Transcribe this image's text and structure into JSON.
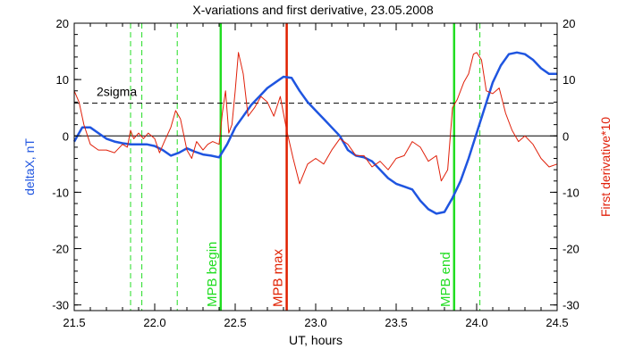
{
  "chart_data": {
    "type": "line",
    "title": "X-variations and first derivative, 23.05.2008",
    "xlabel": "UT, hours",
    "ylabel_left": "deltaX, nT",
    "ylabel_right": "First derivative*10",
    "xlim": [
      21.5,
      24.5
    ],
    "ylim": [
      -31,
      20
    ],
    "x_ticks": [
      "21.5",
      "22.0",
      "22.5",
      "23.0",
      "23.5",
      "24.0",
      "24.5"
    ],
    "y_ticks_left": [
      "20",
      "10",
      "0",
      "-10",
      "-20",
      "-30"
    ],
    "y_ticks_right": [
      "20",
      "10",
      "0",
      "-10",
      "-20",
      "-30"
    ],
    "grid": false,
    "colors": {
      "deltaX": "#1f55e0",
      "derivative": "#e0200a",
      "green": "#22dd22",
      "red_marker": "#e02000",
      "axis": "#000000"
    },
    "series": [
      {
        "name": "deltaX, nT",
        "x": [
          21.5,
          21.55,
          21.6,
          21.65,
          21.7,
          21.75,
          21.8,
          21.85,
          21.9,
          21.95,
          22.0,
          22.05,
          22.1,
          22.15,
          22.2,
          22.25,
          22.3,
          22.35,
          22.4,
          22.45,
          22.5,
          22.55,
          22.6,
          22.65,
          22.7,
          22.75,
          22.8,
          22.85,
          22.9,
          22.95,
          23.0,
          23.05,
          23.1,
          23.15,
          23.2,
          23.25,
          23.3,
          23.35,
          23.4,
          23.45,
          23.5,
          23.55,
          23.6,
          23.65,
          23.7,
          23.75,
          23.8,
          23.85,
          23.9,
          23.95,
          24.0,
          24.05,
          24.1,
          24.15,
          24.2,
          24.25,
          24.3,
          24.35,
          24.4,
          24.45,
          24.5
        ],
        "y": [
          -1.0,
          1.5,
          1.5,
          0.5,
          -0.5,
          -1.0,
          -1.3,
          -1.5,
          -1.5,
          -1.5,
          -1.8,
          -2.5,
          -3.5,
          -3.0,
          -2.2,
          -2.8,
          -3.3,
          -3.5,
          -3.8,
          -1.5,
          1.5,
          3.5,
          5.5,
          7.0,
          8.5,
          9.5,
          10.5,
          10.3,
          8.0,
          6.0,
          4.5,
          3.0,
          1.5,
          0.0,
          -2.5,
          -3.5,
          -3.8,
          -4.5,
          -6.0,
          -7.5,
          -8.5,
          -9.0,
          -9.5,
          -11.5,
          -13.0,
          -13.8,
          -13.5,
          -11.0,
          -8.0,
          -4.0,
          0.5,
          5.0,
          9.5,
          12.5,
          14.5,
          14.8,
          14.5,
          13.5,
          12.0,
          11.0,
          11.0
        ]
      },
      {
        "name": "First derivative*10",
        "x": [
          21.5,
          21.53,
          21.56,
          21.6,
          21.65,
          21.7,
          21.75,
          21.8,
          21.83,
          21.85,
          21.87,
          21.9,
          21.93,
          21.96,
          22.0,
          22.03,
          22.06,
          22.1,
          22.13,
          22.16,
          22.2,
          22.23,
          22.26,
          22.3,
          22.33,
          22.36,
          22.4,
          22.42,
          22.44,
          22.46,
          22.48,
          22.5,
          22.52,
          22.55,
          22.58,
          22.62,
          22.66,
          22.7,
          22.74,
          22.78,
          22.82,
          22.86,
          22.9,
          22.95,
          23.0,
          23.05,
          23.1,
          23.15,
          23.2,
          23.25,
          23.3,
          23.35,
          23.4,
          23.45,
          23.5,
          23.55,
          23.6,
          23.65,
          23.7,
          23.75,
          23.78,
          23.82,
          23.85,
          23.88,
          23.92,
          23.95,
          23.98,
          24.0,
          24.03,
          24.06,
          24.1,
          24.14,
          24.18,
          24.22,
          24.26,
          24.3,
          24.35,
          24.4,
          24.45,
          24.5
        ],
        "y": [
          8.0,
          6.0,
          2.0,
          -1.5,
          -2.5,
          -2.5,
          -3.0,
          -1.5,
          -2.0,
          1.0,
          -0.5,
          0.5,
          -0.5,
          0.5,
          -0.5,
          -3.0,
          -1.0,
          1.5,
          4.5,
          3.0,
          -2.5,
          -4.0,
          -1.0,
          -2.5,
          -1.5,
          -1.0,
          -1.5,
          4.0,
          8.0,
          0.5,
          2.0,
          8.0,
          14.8,
          11.0,
          3.5,
          5.0,
          7.0,
          6.0,
          3.5,
          7.0,
          1.0,
          -4.0,
          -8.5,
          -5.0,
          -4.0,
          -5.0,
          -2.5,
          -0.5,
          -1.5,
          -3.5,
          -3.5,
          -5.5,
          -4.5,
          -6.0,
          -4.0,
          -3.5,
          -1.0,
          -2.0,
          -4.5,
          -3.5,
          -8.0,
          -6.0,
          5.0,
          6.5,
          9.5,
          11.0,
          14.5,
          14.8,
          13.5,
          8.0,
          7.5,
          8.5,
          4.0,
          1.0,
          -1.0,
          0.0,
          -1.5,
          -4.0,
          -5.5,
          -5.0
        ]
      }
    ],
    "reference_lines": [
      {
        "orientation": "horizontal",
        "y": 5.8,
        "style": "dashed",
        "label": "2sigma"
      },
      {
        "orientation": "horizontal",
        "y": 0,
        "style": "solid",
        "label": ""
      }
    ],
    "markers": [
      {
        "x": 22.41,
        "label": "MPB begin",
        "color": "green",
        "style": "solid"
      },
      {
        "x": 22.82,
        "label": "MPB max",
        "color": "red",
        "style": "solid"
      },
      {
        "x": 23.86,
        "label": "MPB end",
        "color": "green",
        "style": "solid"
      },
      {
        "x": 21.85,
        "label": "",
        "color": "green",
        "style": "dashed"
      },
      {
        "x": 21.92,
        "label": "",
        "color": "green",
        "style": "dashed"
      },
      {
        "x": 22.14,
        "label": "",
        "color": "green",
        "style": "dashed"
      },
      {
        "x": 24.02,
        "label": "",
        "color": "green",
        "style": "dashed"
      }
    ]
  }
}
